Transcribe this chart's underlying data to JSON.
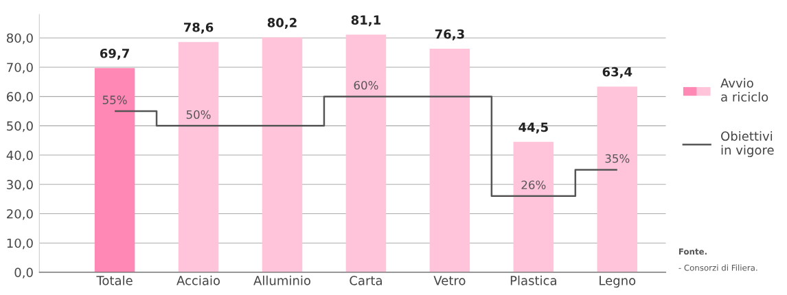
{
  "chart_data": {
    "type": "bar",
    "categories": [
      "Totale",
      "Acciaio",
      "Alluminio",
      "Carta",
      "Vetro",
      "Plastica",
      "Legno"
    ],
    "series": [
      {
        "name": "Avvio\na riciclo",
        "colors": [
          "#ff88b4",
          "#ffc4da",
          "#ffc4da",
          "#ffc4da",
          "#ffc4da",
          "#ffc4da",
          "#ffc4da"
        ],
        "values": [
          69.7,
          78.6,
          80.2,
          81.1,
          76.3,
          44.5,
          63.4
        ],
        "value_labels": [
          "69,7",
          "78,6",
          "80,2",
          "81,1",
          "76,3",
          "44,5",
          "63,4"
        ]
      },
      {
        "name": "Obiettivi\nin vigore",
        "type": "step",
        "color": "#555555",
        "values": [
          55,
          50,
          50,
          60,
          60,
          26,
          35
        ],
        "value_labels": [
          "55%",
          "50%",
          null,
          "60%",
          null,
          "26%",
          "35%"
        ]
      }
    ],
    "ylim": [
      0,
      88
    ],
    "yticks": [
      {
        "value": 0,
        "label": "0,0"
      },
      {
        "value": 10,
        "label": "10,0"
      },
      {
        "value": 20,
        "label": "20,0"
      },
      {
        "value": 30,
        "label": "30,0"
      },
      {
        "value": 40,
        "label": "40,0"
      },
      {
        "value": 50,
        "label": "50,0"
      },
      {
        "value": 60,
        "label": "60,0"
      },
      {
        "value": 70,
        "label": "70,0"
      },
      {
        "value": 80,
        "label": "80,0"
      }
    ],
    "grid": "y",
    "legend": "right",
    "annotations": [
      "Fonte.",
      "- Consorzi di Filiera."
    ]
  }
}
